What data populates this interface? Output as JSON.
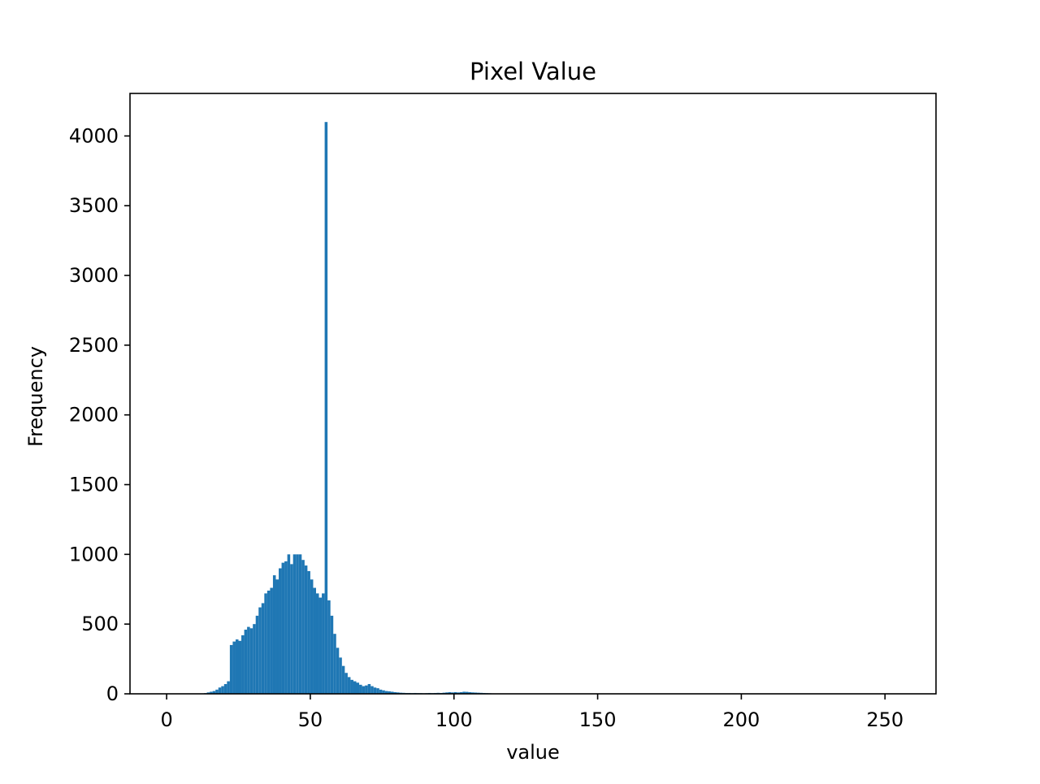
{
  "chart_data": {
    "type": "histogram",
    "title": "Pixel Value",
    "xlabel": "value",
    "ylabel": "Frequency",
    "xlim": [
      -12.75,
      267.75
    ],
    "ylim": [
      0,
      4305
    ],
    "xticks": [
      0,
      50,
      100,
      150,
      200,
      250
    ],
    "yticks": [
      0,
      500,
      1000,
      1500,
      2000,
      2500,
      3000,
      3500,
      4000
    ],
    "bar_color": "#1f77b4",
    "bin_width": 1,
    "bins": [
      {
        "x": 13,
        "y": 5
      },
      {
        "x": 14,
        "y": 10
      },
      {
        "x": 15,
        "y": 15
      },
      {
        "x": 16,
        "y": 20
      },
      {
        "x": 17,
        "y": 30
      },
      {
        "x": 18,
        "y": 45
      },
      {
        "x": 19,
        "y": 55
      },
      {
        "x": 20,
        "y": 70
      },
      {
        "x": 21,
        "y": 90
      },
      {
        "x": 22,
        "y": 350
      },
      {
        "x": 23,
        "y": 375
      },
      {
        "x": 24,
        "y": 390
      },
      {
        "x": 25,
        "y": 380
      },
      {
        "x": 26,
        "y": 420
      },
      {
        "x": 27,
        "y": 460
      },
      {
        "x": 28,
        "y": 480
      },
      {
        "x": 29,
        "y": 470
      },
      {
        "x": 30,
        "y": 500
      },
      {
        "x": 31,
        "y": 560
      },
      {
        "x": 32,
        "y": 620
      },
      {
        "x": 33,
        "y": 650
      },
      {
        "x": 34,
        "y": 720
      },
      {
        "x": 35,
        "y": 740
      },
      {
        "x": 36,
        "y": 760
      },
      {
        "x": 37,
        "y": 850
      },
      {
        "x": 38,
        "y": 820
      },
      {
        "x": 39,
        "y": 900
      },
      {
        "x": 40,
        "y": 940
      },
      {
        "x": 41,
        "y": 950
      },
      {
        "x": 42,
        "y": 1000
      },
      {
        "x": 43,
        "y": 930
      },
      {
        "x": 44,
        "y": 1000
      },
      {
        "x": 45,
        "y": 1000
      },
      {
        "x": 46,
        "y": 1000
      },
      {
        "x": 47,
        "y": 960
      },
      {
        "x": 48,
        "y": 920
      },
      {
        "x": 49,
        "y": 880
      },
      {
        "x": 50,
        "y": 820
      },
      {
        "x": 51,
        "y": 760
      },
      {
        "x": 52,
        "y": 720
      },
      {
        "x": 53,
        "y": 690
      },
      {
        "x": 54,
        "y": 720
      },
      {
        "x": 55,
        "y": 4100
      },
      {
        "x": 56,
        "y": 670
      },
      {
        "x": 57,
        "y": 560
      },
      {
        "x": 58,
        "y": 430
      },
      {
        "x": 59,
        "y": 330
      },
      {
        "x": 60,
        "y": 260
      },
      {
        "x": 61,
        "y": 200
      },
      {
        "x": 62,
        "y": 150
      },
      {
        "x": 63,
        "y": 120
      },
      {
        "x": 64,
        "y": 100
      },
      {
        "x": 65,
        "y": 90
      },
      {
        "x": 66,
        "y": 80
      },
      {
        "x": 67,
        "y": 65
      },
      {
        "x": 68,
        "y": 55
      },
      {
        "x": 69,
        "y": 60
      },
      {
        "x": 70,
        "y": 70
      },
      {
        "x": 71,
        "y": 55
      },
      {
        "x": 72,
        "y": 45
      },
      {
        "x": 73,
        "y": 40
      },
      {
        "x": 74,
        "y": 30
      },
      {
        "x": 75,
        "y": 25
      },
      {
        "x": 76,
        "y": 20
      },
      {
        "x": 77,
        "y": 18
      },
      {
        "x": 78,
        "y": 15
      },
      {
        "x": 79,
        "y": 12
      },
      {
        "x": 80,
        "y": 10
      },
      {
        "x": 81,
        "y": 8
      },
      {
        "x": 82,
        "y": 7
      },
      {
        "x": 83,
        "y": 6
      },
      {
        "x": 84,
        "y": 6
      },
      {
        "x": 85,
        "y": 5
      },
      {
        "x": 86,
        "y": 6
      },
      {
        "x": 87,
        "y": 5
      },
      {
        "x": 88,
        "y": 5
      },
      {
        "x": 89,
        "y": 4
      },
      {
        "x": 90,
        "y": 5
      },
      {
        "x": 91,
        "y": 6
      },
      {
        "x": 92,
        "y": 5
      },
      {
        "x": 93,
        "y": 6
      },
      {
        "x": 94,
        "y": 7
      },
      {
        "x": 95,
        "y": 6
      },
      {
        "x": 96,
        "y": 8
      },
      {
        "x": 97,
        "y": 10
      },
      {
        "x": 98,
        "y": 12
      },
      {
        "x": 99,
        "y": 10
      },
      {
        "x": 100,
        "y": 12
      },
      {
        "x": 101,
        "y": 10
      },
      {
        "x": 102,
        "y": 12
      },
      {
        "x": 103,
        "y": 15
      },
      {
        "x": 104,
        "y": 14
      },
      {
        "x": 105,
        "y": 12
      },
      {
        "x": 106,
        "y": 10
      },
      {
        "x": 107,
        "y": 9
      },
      {
        "x": 108,
        "y": 8
      },
      {
        "x": 109,
        "y": 7
      },
      {
        "x": 110,
        "y": 6
      },
      {
        "x": 111,
        "y": 5
      },
      {
        "x": 112,
        "y": 4
      },
      {
        "x": 113,
        "y": 3
      },
      {
        "x": 114,
        "y": 2
      },
      {
        "x": 115,
        "y": 2
      }
    ]
  }
}
